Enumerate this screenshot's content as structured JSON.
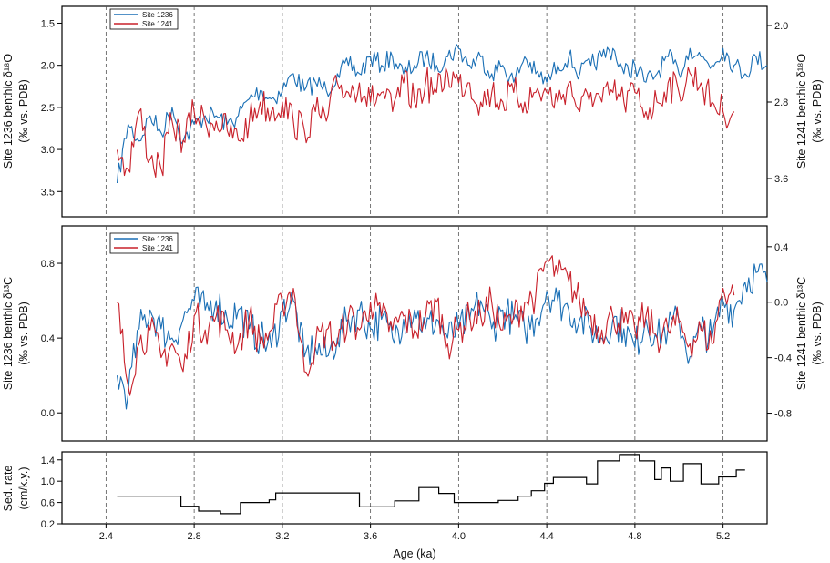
{
  "chart_data": [
    {
      "type": "line",
      "panel": "top",
      "ylabel": "Site 1236 benthic δ18O (‰ vs. PDB)",
      "ylabel_line1": "Site 1236 benthic δ¹⁸O",
      "ylabel_line2": "(‰ vs. PDB)",
      "y2label": "Site 1241 benthic δ18O (‰ vs. PDB)",
      "y2label_line1": "Site 1241 benthic δ¹⁸O",
      "y2label_line2": "(‰ vs. PDB)",
      "xlim": [
        2.2,
        5.4
      ],
      "ylim_left": [
        3.8,
        1.3
      ],
      "ylim_right": [
        4.0,
        1.8
      ],
      "yticks_left": [
        "1.5",
        "2.0",
        "2.5",
        "3.0",
        "3.5"
      ],
      "yticks_right": [
        "2.0",
        "2.8",
        "3.6"
      ],
      "legend": [
        "Site 1236",
        "Site 1241"
      ],
      "legend_position": "top-left",
      "colors": {
        "Site 1236": "#1a6fb5",
        "Site 1241": "#c8202a"
      },
      "series": [
        {
          "name": "Site 1236",
          "axis": "left",
          "x": [
            2.45,
            2.5,
            2.55,
            2.6,
            2.65,
            2.7,
            2.75,
            2.8,
            2.85,
            2.9,
            2.95,
            3.0,
            3.05,
            3.1,
            3.15,
            3.2,
            3.25,
            3.3,
            3.35,
            3.4,
            3.45,
            3.5,
            3.55,
            3.6,
            3.65,
            3.7,
            3.75,
            3.8,
            3.85,
            3.9,
            3.95,
            4.0,
            4.05,
            4.1,
            4.15,
            4.2,
            4.25,
            4.3,
            4.35,
            4.4,
            4.45,
            4.5,
            4.55,
            4.6,
            4.65,
            4.7,
            4.75,
            4.8,
            4.85,
            4.9,
            4.95,
            5.0,
            5.05,
            5.1,
            5.15,
            5.2,
            5.25,
            5.3,
            5.35,
            5.4
          ],
          "y": [
            3.4,
            2.7,
            2.9,
            2.6,
            2.8,
            2.5,
            2.9,
            2.7,
            2.6,
            2.6,
            2.7,
            2.6,
            2.4,
            2.3,
            2.4,
            2.3,
            2.1,
            2.3,
            2.2,
            2.3,
            2.1,
            2.0,
            2.1,
            1.9,
            2.0,
            1.9,
            2.1,
            2.0,
            1.9,
            2.0,
            1.9,
            1.8,
            2.0,
            1.9,
            2.1,
            2.0,
            2.2,
            1.9,
            2.1,
            2.2,
            2.0,
            1.9,
            2.1,
            2.0,
            1.9,
            1.8,
            2.1,
            2.0,
            2.2,
            2.1,
            1.9,
            2.1,
            1.8,
            1.9,
            2.0,
            1.8,
            2.0,
            2.1,
            1.9,
            2.0
          ]
        },
        {
          "name": "Site 1241",
          "axis": "right",
          "x": [
            2.45,
            2.5,
            2.55,
            2.6,
            2.65,
            2.7,
            2.75,
            2.8,
            2.85,
            2.9,
            2.95,
            3.0,
            3.05,
            3.1,
            3.15,
            3.2,
            3.25,
            3.3,
            3.35,
            3.4,
            3.45,
            3.5,
            3.55,
            3.6,
            3.65,
            3.7,
            3.75,
            3.8,
            3.85,
            3.9,
            3.95,
            4.0,
            4.05,
            4.1,
            4.15,
            4.2,
            4.25,
            4.3,
            4.35,
            4.4,
            4.45,
            4.5,
            4.55,
            4.6,
            4.65,
            4.7,
            4.75,
            4.8,
            4.85,
            4.9,
            4.95,
            5.0,
            5.05,
            5.1,
            5.15,
            5.2,
            5.25
          ],
          "y": [
            3.3,
            3.5,
            2.9,
            3.4,
            3.5,
            3.0,
            3.2,
            2.9,
            3.0,
            3.0,
            3.1,
            3.2,
            3.0,
            2.8,
            2.9,
            2.8,
            3.0,
            3.1,
            2.9,
            3.0,
            2.6,
            2.7,
            2.6,
            2.8,
            2.7,
            2.9,
            2.6,
            2.8,
            2.6,
            2.7,
            2.5,
            2.6,
            2.6,
            2.8,
            2.7,
            2.8,
            2.7,
            2.8,
            2.7,
            2.7,
            2.8,
            2.6,
            2.9,
            2.7,
            2.8,
            2.7,
            2.8,
            2.7,
            2.9,
            2.8,
            2.6,
            2.7,
            2.5,
            2.6,
            2.8,
            2.9,
            2.9
          ]
        }
      ]
    },
    {
      "type": "line",
      "panel": "middle",
      "ylabel": "Site 1236 benthic δ13C (‰ vs. PDB)",
      "ylabel_line1": "Site 1236 benthic δ¹³C",
      "ylabel_line2": "(‰ vs. PDB)",
      "y2label": "Site 1241 benthic δ13C (‰ vs. PDB)",
      "y2label_line1": "Site 1241 benthic δ¹³C",
      "y2label_line2": "(‰ vs. PDB)",
      "xlim": [
        2.2,
        5.4
      ],
      "ylim_left": [
        -0.15,
        1.0
      ],
      "ylim_right": [
        -1.0,
        0.55
      ],
      "yticks_left": [
        "0.0",
        "0.4",
        "0.8"
      ],
      "yticks_right": [
        "-0.8",
        "-0.4",
        "0.0",
        "0.4"
      ],
      "legend": [
        "Site 1236",
        "Site 1241"
      ],
      "legend_position": "top-left",
      "colors": {
        "Site 1236": "#1a6fb5",
        "Site 1241": "#c8202a"
      },
      "series": [
        {
          "name": "Site 1236",
          "axis": "left",
          "x": [
            2.45,
            2.5,
            2.55,
            2.6,
            2.65,
            2.7,
            2.75,
            2.8,
            2.85,
            2.9,
            2.95,
            3.0,
            3.05,
            3.1,
            3.15,
            3.2,
            3.25,
            3.3,
            3.35,
            3.4,
            3.45,
            3.5,
            3.55,
            3.6,
            3.65,
            3.7,
            3.75,
            3.8,
            3.85,
            3.9,
            3.95,
            4.0,
            4.05,
            4.1,
            4.15,
            4.2,
            4.25,
            4.3,
            4.35,
            4.4,
            4.45,
            4.5,
            4.55,
            4.6,
            4.65,
            4.7,
            4.75,
            4.8,
            4.85,
            4.9,
            4.95,
            5.0,
            5.05,
            5.1,
            5.15,
            5.2,
            5.25,
            5.3,
            5.35,
            5.4
          ],
          "y": [
            0.2,
            0.1,
            0.45,
            0.55,
            0.45,
            0.4,
            0.5,
            0.6,
            0.55,
            0.6,
            0.5,
            0.55,
            0.45,
            0.4,
            0.35,
            0.55,
            0.6,
            0.3,
            0.35,
            0.3,
            0.4,
            0.5,
            0.55,
            0.45,
            0.5,
            0.4,
            0.5,
            0.55,
            0.45,
            0.5,
            0.4,
            0.45,
            0.5,
            0.6,
            0.45,
            0.55,
            0.5,
            0.45,
            0.5,
            0.65,
            0.6,
            0.55,
            0.5,
            0.45,
            0.4,
            0.5,
            0.45,
            0.35,
            0.5,
            0.4,
            0.45,
            0.5,
            0.3,
            0.45,
            0.4,
            0.6,
            0.55,
            0.7,
            0.75,
            0.7
          ]
        },
        {
          "name": "Site 1241",
          "axis": "right",
          "x": [
            2.45,
            2.5,
            2.55,
            2.6,
            2.65,
            2.7,
            2.75,
            2.8,
            2.85,
            2.9,
            2.95,
            3.0,
            3.05,
            3.1,
            3.15,
            3.2,
            3.25,
            3.3,
            3.35,
            3.4,
            3.45,
            3.5,
            3.55,
            3.6,
            3.65,
            3.7,
            3.75,
            3.8,
            3.85,
            3.9,
            3.95,
            4.0,
            4.05,
            4.1,
            4.15,
            4.2,
            4.25,
            4.3,
            4.35,
            4.4,
            4.45,
            4.5,
            4.55,
            4.6,
            4.65,
            4.7,
            4.75,
            4.8,
            4.85,
            4.9,
            4.95,
            5.0,
            5.05,
            5.1,
            5.15,
            5.2,
            5.25
          ],
          "y": [
            0.0,
            -0.6,
            -0.3,
            -0.2,
            -0.4,
            -0.3,
            -0.5,
            -0.1,
            -0.2,
            -0.1,
            -0.2,
            -0.3,
            -0.1,
            -0.3,
            -0.2,
            0.0,
            0.1,
            -0.5,
            -0.3,
            -0.2,
            -0.3,
            -0.1,
            -0.2,
            0.0,
            -0.1,
            -0.2,
            -0.1,
            -0.2,
            -0.1,
            0.0,
            -0.3,
            -0.2,
            -0.1,
            -0.1,
            0.0,
            -0.2,
            -0.1,
            0.0,
            0.05,
            0.3,
            0.2,
            0.15,
            0.0,
            -0.1,
            -0.2,
            -0.1,
            -0.15,
            -0.2,
            -0.1,
            -0.25,
            -0.2,
            -0.15,
            -0.3,
            -0.2,
            -0.3,
            0.1,
            0.05
          ]
        }
      ]
    },
    {
      "type": "line",
      "panel": "bottom",
      "step": true,
      "ylabel": "Sed. rate (cm/k.y.)",
      "ylabel_line1": "Sed. rate",
      "ylabel_line2": "(cm/k.y.)",
      "xlabel": "Age (ka)",
      "xlim": [
        2.2,
        5.4
      ],
      "ylim": [
        0.2,
        1.55
      ],
      "yticks": [
        "0.2",
        "0.6",
        "1.0",
        "1.4"
      ],
      "xticks": [
        "2.4",
        "2.8",
        "3.2",
        "3.6",
        "4.0",
        "4.4",
        "4.8",
        "5.2"
      ],
      "series": [
        {
          "name": "",
          "x": [
            2.45,
            2.74,
            2.82,
            2.92,
            3.01,
            3.14,
            3.17,
            3.55,
            3.71,
            3.82,
            3.91,
            3.98,
            4.18,
            4.27,
            4.33,
            4.39,
            4.43,
            4.58,
            4.63,
            4.73,
            4.82,
            4.89,
            4.92,
            4.96,
            5.02,
            5.1,
            5.18,
            5.26
          ],
          "y": [
            0.72,
            0.53,
            0.44,
            0.39,
            0.6,
            0.65,
            0.78,
            0.52,
            0.63,
            0.88,
            0.77,
            0.6,
            0.64,
            0.72,
            0.82,
            0.96,
            1.07,
            0.95,
            1.38,
            1.5,
            1.38,
            1.03,
            1.25,
            1.0,
            1.33,
            0.95,
            1.08,
            1.21
          ]
        }
      ]
    }
  ]
}
